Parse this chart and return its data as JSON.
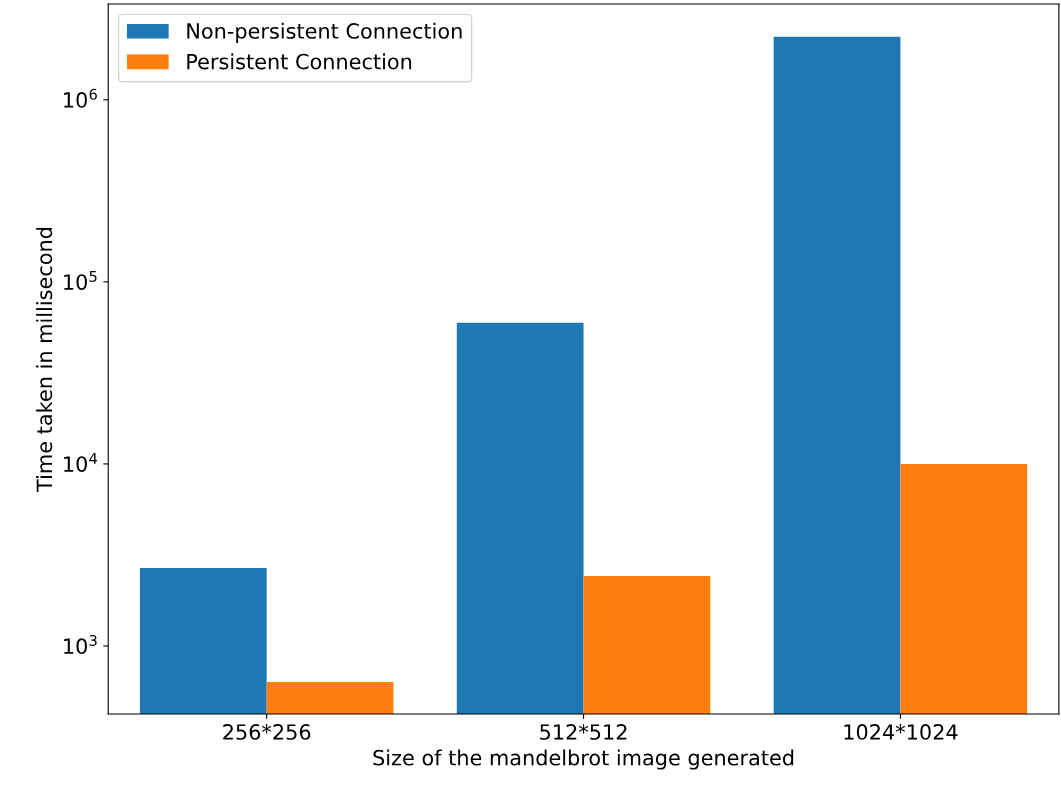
{
  "chart_data": {
    "type": "bar",
    "xlabel": "Size of the mandelbrot image generated",
    "ylabel": "Time taken in millisecond",
    "categories": [
      "256*256",
      "512*512",
      "1024*1024"
    ],
    "series": [
      {
        "name": "Non-persistent Connection",
        "color": "#1f77b4",
        "values": [
          2680,
          59600,
          2220000
        ]
      },
      {
        "name": "Persistent Connection",
        "color": "#ff7f0e",
        "values": [
          635,
          2425,
          10000
        ]
      }
    ],
    "log": "y",
    "ylim": [
      423,
      3360000
    ],
    "yticks": [
      {
        "value": 1000,
        "label": "10$^{3}$"
      },
      {
        "value": 10000,
        "label": "10$^{4}$"
      },
      {
        "value": 100000,
        "label": "10$^{5}$"
      },
      {
        "value": 1000000,
        "label": "10$^{6}$"
      }
    ],
    "legend": "top left",
    "grid": false
  }
}
